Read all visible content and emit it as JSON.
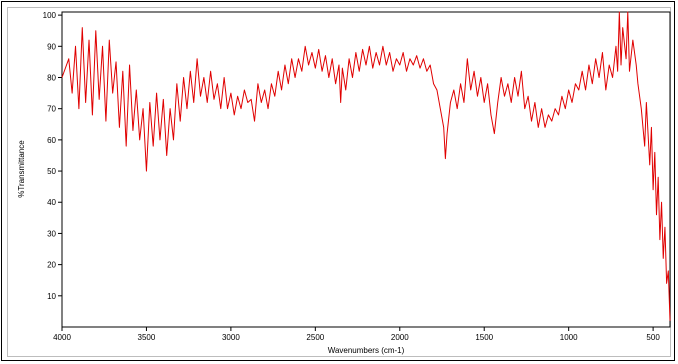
{
  "chart_data": {
    "type": "line",
    "title": "",
    "xlabel": "Wavenumbers (cm-1)",
    "ylabel": "%Transmittance",
    "xlim": [
      4000,
      400
    ],
    "ylim": [
      0,
      101
    ],
    "x_reversed": true,
    "grid": false,
    "line_color": "#e00000",
    "x_ticks": [
      4000,
      3500,
      3000,
      2500,
      2000,
      1500,
      1000,
      500
    ],
    "x_tick_labels": [
      "4000",
      "3500",
      "3000",
      "2500",
      "2000",
      "1500",
      "1000",
      "500"
    ],
    "y_ticks": [
      10,
      20,
      30,
      40,
      50,
      60,
      70,
      80,
      90,
      100
    ],
    "y_tick_labels": [
      "10",
      "20",
      "30",
      "40",
      "50",
      "60",
      "70",
      "80",
      "90",
      "100"
    ],
    "series": [
      {
        "points": [
          [
            4000,
            80
          ],
          [
            3960,
            86
          ],
          [
            3940,
            75
          ],
          [
            3920,
            90
          ],
          [
            3900,
            70
          ],
          [
            3880,
            96
          ],
          [
            3860,
            72
          ],
          [
            3840,
            92
          ],
          [
            3820,
            68
          ],
          [
            3800,
            95
          ],
          [
            3780,
            73
          ],
          [
            3760,
            90
          ],
          [
            3740,
            66
          ],
          [
            3720,
            92
          ],
          [
            3700,
            75
          ],
          [
            3680,
            85
          ],
          [
            3660,
            64
          ],
          [
            3640,
            82
          ],
          [
            3620,
            58
          ],
          [
            3600,
            84
          ],
          [
            3580,
            63
          ],
          [
            3560,
            76
          ],
          [
            3540,
            60
          ],
          [
            3520,
            70
          ],
          [
            3500,
            50
          ],
          [
            3480,
            72
          ],
          [
            3460,
            58
          ],
          [
            3440,
            75
          ],
          [
            3420,
            60
          ],
          [
            3400,
            73
          ],
          [
            3380,
            55
          ],
          [
            3360,
            70
          ],
          [
            3340,
            60
          ],
          [
            3320,
            78
          ],
          [
            3300,
            66
          ],
          [
            3280,
            80
          ],
          [
            3260,
            70
          ],
          [
            3240,
            82
          ],
          [
            3220,
            72
          ],
          [
            3200,
            86
          ],
          [
            3180,
            74
          ],
          [
            3160,
            80
          ],
          [
            3140,
            72
          ],
          [
            3120,
            82
          ],
          [
            3100,
            73
          ],
          [
            3080,
            78
          ],
          [
            3060,
            70
          ],
          [
            3040,
            80
          ],
          [
            3020,
            70
          ],
          [
            3000,
            75
          ],
          [
            2980,
            68
          ],
          [
            2960,
            74
          ],
          [
            2940,
            70
          ],
          [
            2920,
            76
          ],
          [
            2900,
            72
          ],
          [
            2880,
            73
          ],
          [
            2860,
            66
          ],
          [
            2840,
            78
          ],
          [
            2820,
            72
          ],
          [
            2800,
            76
          ],
          [
            2780,
            70
          ],
          [
            2760,
            78
          ],
          [
            2740,
            74
          ],
          [
            2720,
            82
          ],
          [
            2700,
            76
          ],
          [
            2680,
            84
          ],
          [
            2660,
            78
          ],
          [
            2640,
            86
          ],
          [
            2620,
            80
          ],
          [
            2600,
            86
          ],
          [
            2580,
            82
          ],
          [
            2560,
            90
          ],
          [
            2540,
            84
          ],
          [
            2520,
            88
          ],
          [
            2500,
            83
          ],
          [
            2480,
            89
          ],
          [
            2460,
            82
          ],
          [
            2440,
            87
          ],
          [
            2420,
            80
          ],
          [
            2400,
            86
          ],
          [
            2380,
            78
          ],
          [
            2360,
            84
          ],
          [
            2350,
            72
          ],
          [
            2340,
            83
          ],
          [
            2320,
            76
          ],
          [
            2300,
            86
          ],
          [
            2280,
            80
          ],
          [
            2260,
            88
          ],
          [
            2240,
            82
          ],
          [
            2220,
            89
          ],
          [
            2200,
            84
          ],
          [
            2180,
            90
          ],
          [
            2160,
            83
          ],
          [
            2140,
            88
          ],
          [
            2120,
            84
          ],
          [
            2100,
            90
          ],
          [
            2080,
            84
          ],
          [
            2060,
            88
          ],
          [
            2040,
            82
          ],
          [
            2020,
            86
          ],
          [
            2000,
            84
          ],
          [
            1980,
            88
          ],
          [
            1960,
            82
          ],
          [
            1940,
            86
          ],
          [
            1920,
            84
          ],
          [
            1900,
            87
          ],
          [
            1880,
            83
          ],
          [
            1860,
            86
          ],
          [
            1840,
            82
          ],
          [
            1820,
            84
          ],
          [
            1800,
            78
          ],
          [
            1780,
            76
          ],
          [
            1760,
            70
          ],
          [
            1740,
            64
          ],
          [
            1730,
            54
          ],
          [
            1720,
            62
          ],
          [
            1700,
            72
          ],
          [
            1680,
            76
          ],
          [
            1660,
            70
          ],
          [
            1640,
            78
          ],
          [
            1620,
            72
          ],
          [
            1600,
            86
          ],
          [
            1580,
            76
          ],
          [
            1560,
            82
          ],
          [
            1540,
            74
          ],
          [
            1520,
            80
          ],
          [
            1500,
            72
          ],
          [
            1480,
            78
          ],
          [
            1460,
            68
          ],
          [
            1440,
            62
          ],
          [
            1420,
            72
          ],
          [
            1400,
            80
          ],
          [
            1380,
            74
          ],
          [
            1360,
            78
          ],
          [
            1340,
            72
          ],
          [
            1320,
            80
          ],
          [
            1300,
            74
          ],
          [
            1280,
            82
          ],
          [
            1260,
            70
          ],
          [
            1240,
            74
          ],
          [
            1220,
            66
          ],
          [
            1200,
            72
          ],
          [
            1180,
            64
          ],
          [
            1160,
            70
          ],
          [
            1140,
            64
          ],
          [
            1120,
            68
          ],
          [
            1100,
            66
          ],
          [
            1080,
            70
          ],
          [
            1060,
            68
          ],
          [
            1040,
            74
          ],
          [
            1020,
            70
          ],
          [
            1000,
            76
          ],
          [
            980,
            72
          ],
          [
            960,
            78
          ],
          [
            940,
            76
          ],
          [
            920,
            82
          ],
          [
            900,
            76
          ],
          [
            880,
            84
          ],
          [
            860,
            78
          ],
          [
            840,
            86
          ],
          [
            820,
            80
          ],
          [
            800,
            88
          ],
          [
            780,
            76
          ],
          [
            760,
            84
          ],
          [
            740,
            80
          ],
          [
            720,
            90
          ],
          [
            710,
            82
          ],
          [
            700,
            101
          ],
          [
            690,
            84
          ],
          [
            680,
            96
          ],
          [
            660,
            86
          ],
          [
            650,
            101
          ],
          [
            640,
            82
          ],
          [
            620,
            92
          ],
          [
            600,
            84
          ],
          [
            590,
            78
          ],
          [
            570,
            70
          ],
          [
            560,
            64
          ],
          [
            550,
            58
          ],
          [
            540,
            72
          ],
          [
            520,
            52
          ],
          [
            510,
            64
          ],
          [
            500,
            44
          ],
          [
            490,
            56
          ],
          [
            480,
            36
          ],
          [
            470,
            48
          ],
          [
            460,
            28
          ],
          [
            450,
            40
          ],
          [
            440,
            22
          ],
          [
            430,
            32
          ],
          [
            420,
            14
          ],
          [
            410,
            18
          ],
          [
            400,
            2
          ]
        ]
      }
    ]
  }
}
